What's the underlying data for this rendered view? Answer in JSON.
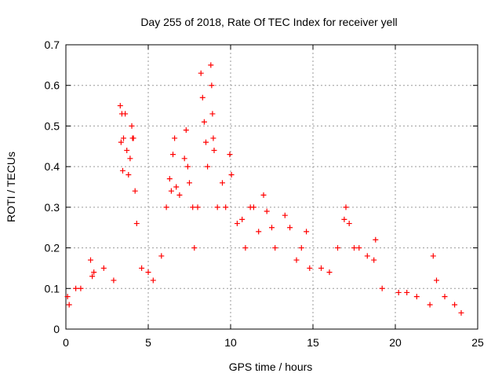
{
  "chart_data": {
    "type": "scatter",
    "title": "Day 255 of 2018, Rate Of TEC Index for receiver yell",
    "xlabel": "GPS time / hours",
    "ylabel": "ROTI / TECUs",
    "xlim": [
      0,
      25
    ],
    "ylim": [
      0,
      0.7
    ],
    "xticks": [
      0,
      5,
      10,
      15,
      20,
      25
    ],
    "yticks": [
      0,
      0.1,
      0.2,
      0.3,
      0.4,
      0.5,
      0.6,
      0.7
    ],
    "grid": true,
    "marker": "+",
    "color": "#ff0000",
    "series": [
      {
        "name": "ROTI",
        "x": [
          0.1,
          0.2,
          0.6,
          0.9,
          1.5,
          1.6,
          1.7,
          2.3,
          2.9,
          3.3,
          3.35,
          3.4,
          3.45,
          3.5,
          3.6,
          3.7,
          3.8,
          3.9,
          4.0,
          4.05,
          4.1,
          4.2,
          4.3,
          4.6,
          5.0,
          5.3,
          5.8,
          6.1,
          6.3,
          6.4,
          6.5,
          6.6,
          6.7,
          6.9,
          7.2,
          7.3,
          7.4,
          7.5,
          7.7,
          7.8,
          8.0,
          8.2,
          8.3,
          8.4,
          8.5,
          8.6,
          8.8,
          8.85,
          8.9,
          8.95,
          9.0,
          9.2,
          9.5,
          9.7,
          9.95,
          10.05,
          10.4,
          10.7,
          10.9,
          11.2,
          11.4,
          11.7,
          12.0,
          12.2,
          12.5,
          12.7,
          13.3,
          13.6,
          14.0,
          14.3,
          14.6,
          14.8,
          15.5,
          16.0,
          16.5,
          16.9,
          17.0,
          17.2,
          17.5,
          17.8,
          18.3,
          18.7,
          18.8,
          19.2,
          20.2,
          20.7,
          21.3,
          22.1,
          22.3,
          22.5,
          23.0,
          23.6,
          24.0
        ],
        "y": [
          0.08,
          0.06,
          0.1,
          0.1,
          0.17,
          0.13,
          0.14,
          0.15,
          0.12,
          0.55,
          0.46,
          0.53,
          0.39,
          0.47,
          0.53,
          0.44,
          0.38,
          0.42,
          0.5,
          0.47,
          0.47,
          0.34,
          0.26,
          0.15,
          0.14,
          0.12,
          0.18,
          0.3,
          0.37,
          0.34,
          0.43,
          0.47,
          0.35,
          0.33,
          0.42,
          0.49,
          0.4,
          0.36,
          0.3,
          0.2,
          0.3,
          0.63,
          0.57,
          0.51,
          0.46,
          0.4,
          0.65,
          0.6,
          0.53,
          0.47,
          0.44,
          0.3,
          0.36,
          0.3,
          0.43,
          0.38,
          0.26,
          0.27,
          0.2,
          0.3,
          0.3,
          0.24,
          0.33,
          0.29,
          0.25,
          0.2,
          0.28,
          0.25,
          0.17,
          0.2,
          0.24,
          0.15,
          0.15,
          0.14,
          0.2,
          0.27,
          0.3,
          0.26,
          0.2,
          0.2,
          0.18,
          0.17,
          0.22,
          0.1,
          0.09,
          0.09,
          0.08,
          0.06,
          0.18,
          0.12,
          0.08,
          0.06,
          0.04
        ]
      }
    ]
  }
}
